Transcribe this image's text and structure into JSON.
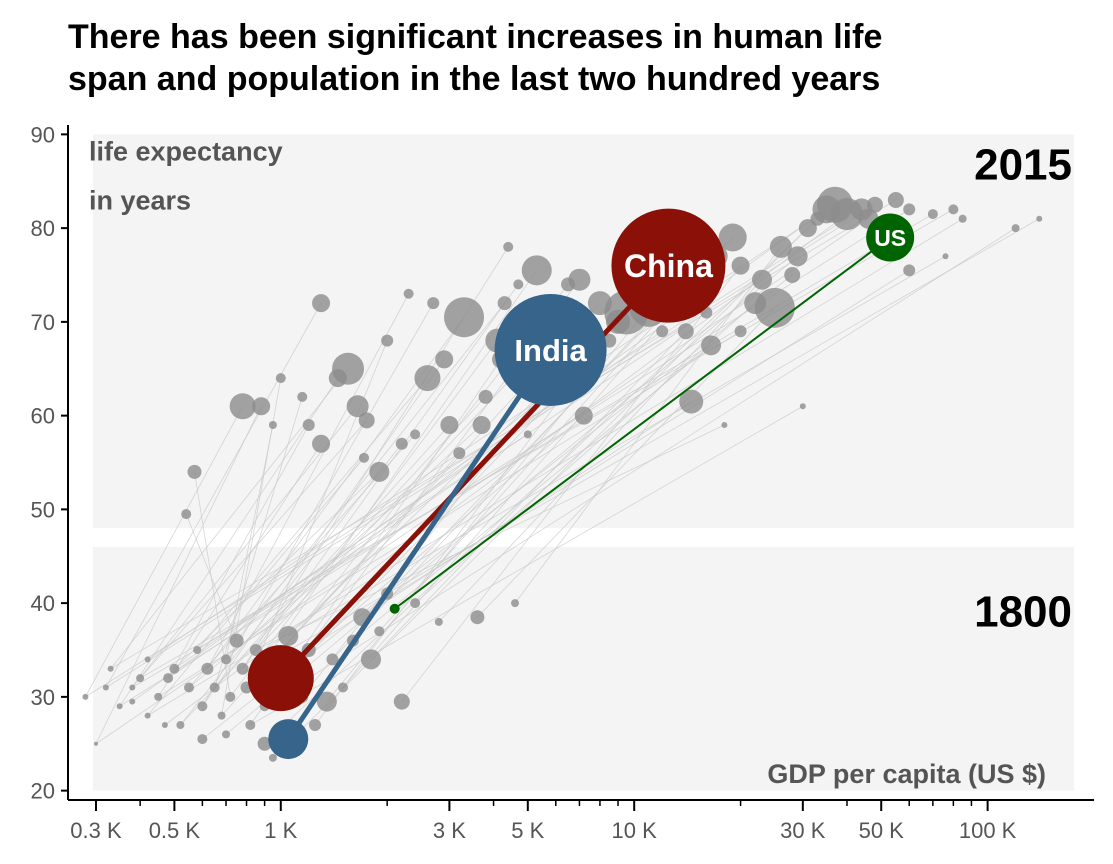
{
  "title_lines": [
    "There has been significant increases in human life",
    "span and population in the last two hundred years"
  ],
  "chart_data": {
    "type": "scatter",
    "title": "There has been significant increases in human life span and population in the last two hundred years",
    "xlabel": "GDP per capita (US $)",
    "ylabel_lines": [
      "life expectancy",
      "in years"
    ],
    "x_scale": "log",
    "xlim": [
      250,
      200000
    ],
    "ylim": [
      19,
      91
    ],
    "x_ticks": [
      300,
      500,
      1000,
      3000,
      5000,
      10000,
      30000,
      50000,
      100000
    ],
    "x_tick_labels": [
      "0.3 K",
      "0.5 K",
      "1 K",
      "3 K",
      "5 K",
      "10 K",
      "30 K",
      "50 K",
      "100 K"
    ],
    "x_minor_ticks": [
      400,
      600,
      700,
      800,
      900,
      2000,
      4000,
      6000,
      7000,
      8000,
      9000,
      20000,
      40000,
      60000,
      70000,
      80000,
      90000
    ],
    "y_ticks": [
      20,
      30,
      40,
      50,
      60,
      70,
      80,
      90
    ],
    "y_tick_labels": [
      "20",
      "30",
      "40",
      "50",
      "60",
      "70",
      "80",
      "90"
    ],
    "panels": [
      {
        "label": "2015",
        "y_range": [
          48,
          90
        ]
      },
      {
        "label": "1800",
        "y_range": [
          20,
          46
        ]
      }
    ],
    "colors": {
      "panel_bg": "#f4f4f4",
      "other_countries": "#8c8c8c",
      "connector": "#c8c8c8",
      "China": "#8b1008",
      "India": "#36648b",
      "US": "#006400"
    },
    "highlight_series": [
      {
        "name": "China",
        "x": [
          1000,
          12500
        ],
        "y": [
          32,
          76
        ],
        "size_1800": 33,
        "size_2015": 57,
        "label_size": 32
      },
      {
        "name": "India",
        "x": [
          1050,
          5800
        ],
        "y": [
          25.5,
          67
        ],
        "size_1800": 20,
        "size_2015": 56,
        "label_size": 31
      },
      {
        "name": "US",
        "x": [
          2100,
          53000
        ],
        "y": [
          39.4,
          79
        ],
        "size_1800": 5,
        "size_2015": 24,
        "label_size": 23
      }
    ],
    "other_points_2015": [
      [
        780,
        61,
        13
      ],
      [
        880,
        61,
        9
      ],
      [
        1300,
        72,
        9
      ],
      [
        1550,
        65,
        16
      ],
      [
        1450,
        64,
        9
      ],
      [
        1650,
        61,
        11
      ],
      [
        1750,
        59.5,
        8
      ],
      [
        1720,
        55.5,
        5
      ],
      [
        1300,
        57,
        9
      ],
      [
        1200,
        59,
        6
      ],
      [
        1900,
        54,
        10
      ],
      [
        2200,
        57,
        6
      ],
      [
        2400,
        58,
        5
      ],
      [
        2600,
        64,
        13
      ],
      [
        2900,
        66,
        9
      ],
      [
        3300,
        70.5,
        20
      ],
      [
        3000,
        59,
        9
      ],
      [
        3200,
        56,
        6
      ],
      [
        3700,
        59,
        9
      ],
      [
        4100,
        68,
        12
      ],
      [
        4300,
        72,
        7
      ],
      [
        4700,
        74,
        5
      ],
      [
        5300,
        75.5,
        15
      ],
      [
        4200,
        66,
        9
      ],
      [
        4500,
        64,
        7
      ],
      [
        6500,
        74,
        7
      ],
      [
        7000,
        74.5,
        11
      ],
      [
        8000,
        72,
        12
      ],
      [
        9500,
        71,
        22
      ],
      [
        8500,
        68,
        7
      ],
      [
        7500,
        69,
        5
      ],
      [
        7200,
        60,
        9
      ],
      [
        9000,
        70,
        12
      ],
      [
        11000,
        71.5,
        19
      ],
      [
        13000,
        73,
        9
      ],
      [
        15000,
        74,
        11
      ],
      [
        16500,
        67.5,
        10
      ],
      [
        14500,
        61.5,
        12
      ],
      [
        14000,
        69,
        8
      ],
      [
        17000,
        77,
        12
      ],
      [
        19000,
        79,
        14
      ],
      [
        20000,
        76,
        9
      ],
      [
        22000,
        72,
        11
      ],
      [
        23000,
        74.5,
        10
      ],
      [
        25000,
        71.5,
        20
      ],
      [
        26000,
        78,
        11
      ],
      [
        28000,
        75,
        8
      ],
      [
        29000,
        77,
        10
      ],
      [
        31000,
        80,
        9
      ],
      [
        33000,
        81,
        7
      ],
      [
        35000,
        82,
        14
      ],
      [
        37000,
        82.5,
        18
      ],
      [
        40000,
        81.5,
        16
      ],
      [
        44000,
        82,
        11
      ],
      [
        46000,
        81,
        10
      ],
      [
        48000,
        82.5,
        8
      ],
      [
        55000,
        83,
        8
      ],
      [
        60000,
        82,
        6
      ],
      [
        70000,
        81.5,
        5
      ],
      [
        80000,
        82,
        5
      ],
      [
        85000,
        81,
        4
      ],
      [
        20000,
        69,
        6
      ],
      [
        16000,
        71,
        6
      ],
      [
        12000,
        69,
        6
      ],
      [
        3800,
        62,
        7
      ],
      [
        6000,
        63,
        5
      ],
      [
        5000,
        58,
        4
      ],
      [
        2700,
        72,
        6
      ],
      [
        2300,
        73,
        5
      ],
      [
        1150,
        62,
        5
      ],
      [
        1000,
        64,
        5
      ],
      [
        950,
        59,
        4
      ],
      [
        570,
        54,
        7
      ],
      [
        540,
        49.5,
        5
      ],
      [
        4400,
        78,
        5
      ],
      [
        2000,
        68,
        6
      ],
      [
        30000,
        61,
        3
      ],
      [
        18000,
        59,
        3
      ],
      [
        60000,
        75.5,
        6
      ],
      [
        120000,
        80,
        4
      ],
      [
        140000,
        81,
        3
      ],
      [
        76000,
        77,
        3
      ]
    ],
    "other_points_1800": [
      [
        280,
        30,
        3
      ],
      [
        300,
        25,
        2
      ],
      [
        320,
        31,
        3
      ],
      [
        330,
        33,
        3
      ],
      [
        350,
        29,
        3
      ],
      [
        380,
        31,
        3
      ],
      [
        400,
        32,
        4
      ],
      [
        420,
        28,
        3
      ],
      [
        450,
        30,
        4
      ],
      [
        480,
        32,
        5
      ],
      [
        500,
        33,
        5
      ],
      [
        520,
        27,
        4
      ],
      [
        550,
        31,
        5
      ],
      [
        580,
        35,
        4
      ],
      [
        600,
        29,
        5
      ],
      [
        620,
        33,
        6
      ],
      [
        650,
        31,
        5
      ],
      [
        680,
        28,
        4
      ],
      [
        700,
        34,
        5
      ],
      [
        720,
        30,
        5
      ],
      [
        750,
        36,
        7
      ],
      [
        780,
        33,
        6
      ],
      [
        800,
        31,
        6
      ],
      [
        820,
        27,
        5
      ],
      [
        850,
        35,
        6
      ],
      [
        880,
        32,
        7
      ],
      [
        900,
        29,
        5
      ],
      [
        950,
        34,
        6
      ],
      [
        1050,
        36.5,
        10
      ],
      [
        1100,
        33,
        8
      ],
      [
        1150,
        30,
        6
      ],
      [
        1200,
        35,
        7
      ],
      [
        1250,
        27,
        6
      ],
      [
        1350,
        29.5,
        10
      ],
      [
        1400,
        34,
        6
      ],
      [
        1500,
        31,
        5
      ],
      [
        1600,
        36,
        6
      ],
      [
        1700,
        38.5,
        9
      ],
      [
        1800,
        34,
        10
      ],
      [
        1900,
        37,
        5
      ],
      [
        2000,
        41,
        6
      ],
      [
        2200,
        29.5,
        8
      ],
      [
        2400,
        40,
        5
      ],
      [
        2800,
        38,
        4
      ],
      [
        3600,
        38.5,
        7
      ],
      [
        4600,
        40,
        4
      ],
      [
        600,
        25.5,
        5
      ],
      [
        700,
        26,
        4
      ],
      [
        900,
        25,
        7
      ],
      [
        950,
        23.5,
        4
      ],
      [
        380,
        29.5,
        3
      ],
      [
        420,
        34,
        3
      ],
      [
        470,
        27,
        3
      ]
    ]
  }
}
